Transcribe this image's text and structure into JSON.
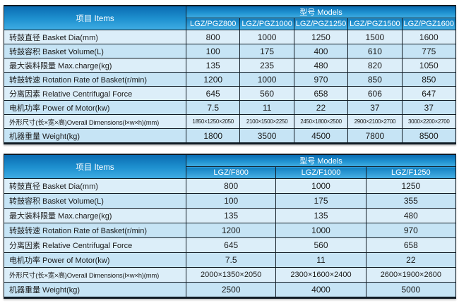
{
  "colors": {
    "header_gradient_top": "#0a6cb2",
    "header_gradient_bottom": "#3fade3",
    "model_row_top": "#1280c2",
    "model_row_bottom": "#49b2e6",
    "row_light": "#dceef9",
    "row_dark": "#c6e4f5",
    "border": "#101b24",
    "header_text": "#ffffff",
    "cell_text": "#1b1b1b",
    "background": "#ffffff"
  },
  "tables": [
    {
      "items_header": "项目 Items",
      "models_header": "型号 Models",
      "models": [
        "LGZ/PGZ800",
        "LGZ/PGZ1000",
        "LGZ/PGZ1250",
        "LGZ/PGZ1500",
        "LGZ/PGZ1600"
      ],
      "rows": [
        {
          "label": "转鼓直径 Basket Dia(mm)",
          "values": [
            "800",
            "1000",
            "1250",
            "1500",
            "1600"
          ]
        },
        {
          "label": "转鼓容积 Basket Volume(L)",
          "values": [
            "100",
            "175",
            "400",
            "610",
            "775"
          ]
        },
        {
          "label": "最大装料限量 Max.charge(kg)",
          "values": [
            "135",
            "235",
            "480",
            "820",
            "1050"
          ]
        },
        {
          "label": "转鼓转速 Rotation Rate of Basket(r/min)",
          "values": [
            "1200",
            "1000",
            "970",
            "850",
            "850"
          ]
        },
        {
          "label": "分离因素 Relative Centrifugal Force",
          "values": [
            "645",
            "560",
            "658",
            "606",
            "647"
          ]
        },
        {
          "label": "电机功率 Power of Motor(kw)",
          "values": [
            "7.5",
            "11",
            "22",
            "37",
            "37"
          ]
        },
        {
          "label": "外形尺寸(长×宽×高)Overall Dimensions(l×w×h)(mm)",
          "values": [
            "1850×1250×2050",
            "2100×1500×2250",
            "2450×1800×2500",
            "2900×2100×2700",
            "3000×2200×2700"
          ]
        },
        {
          "label": "机器重量 Weight(kg)",
          "values": [
            "1800",
            "3500",
            "4500",
            "7800",
            "8500"
          ]
        }
      ]
    },
    {
      "items_header": "项目 Items",
      "models_header": "型号 Models",
      "models": [
        "LGZ/F800",
        "LGZ/F1000",
        "LGZ/F1250"
      ],
      "rows": [
        {
          "label": "转鼓直径 Basket Dia(mm)",
          "values": [
            "800",
            "1000",
            "1250"
          ]
        },
        {
          "label": "转鼓容积 Basket Volume(L)",
          "values": [
            "100",
            "175",
            "355"
          ]
        },
        {
          "label": "最大装料限量 Max.charge(kg)",
          "values": [
            "135",
            "135",
            "480"
          ]
        },
        {
          "label": "转鼓转速 Rotation Rate of Basket(r/min)",
          "values": [
            "1200",
            "1000",
            "970"
          ]
        },
        {
          "label": "分离因素 Relative Centrifugal Force",
          "values": [
            "645",
            "560",
            "658"
          ]
        },
        {
          "label": "电机功率 Power of Motor(kw)",
          "values": [
            "7.5",
            "11",
            "22"
          ]
        },
        {
          "label": "外形尺寸(长×宽×高)Overall Dimensions(l×w×h)(mm)",
          "values": [
            "2000×1350×2050",
            "2300×1600×2400",
            "2600×1900×2600"
          ]
        },
        {
          "label": "机器重量 Weight(kg)",
          "values": [
            "2500",
            "4000",
            "5000"
          ]
        }
      ]
    }
  ]
}
